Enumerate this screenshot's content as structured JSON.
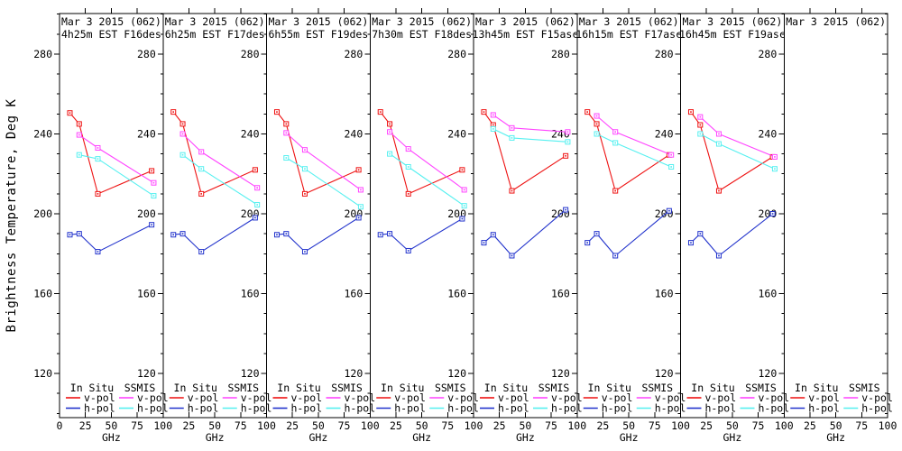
{
  "figure": {
    "background": "#ffffff",
    "frame_color": "#000000"
  },
  "chart_data": {
    "type": "line",
    "title": "",
    "xlabel": "GHz",
    "ylabel": "Brightness Temperature, Deg K",
    "xlim": [
      0,
      100
    ],
    "xticks": [
      0,
      25,
      50,
      75,
      100
    ],
    "xticks_inner": [
      25,
      50,
      75
    ],
    "ylim": [
      97.9,
      300.3
    ],
    "yticks": [
      120,
      160,
      200,
      240,
      280
    ],
    "y_minor_step": 10,
    "grid": false,
    "legend": {
      "position": "bottom-inside-each-panel",
      "groups": [
        {
          "header": "In Situ",
          "entries": [
            {
              "label": "v-pol",
              "series": "insitu_v"
            },
            {
              "label": "h-pol",
              "series": "insitu_h"
            }
          ]
        },
        {
          "header": "SSMIS",
          "entries": [
            {
              "label": "v-pol",
              "series": "ssmis_v"
            },
            {
              "label": "h-pol",
              "series": "ssmis_h"
            }
          ]
        }
      ]
    },
    "colors": {
      "insitu_v": "#ee1111",
      "insitu_h": "#2233cc",
      "ssmis_v": "#ff44ff",
      "ssmis_h": "#55f0f0"
    },
    "panels": [
      {
        "title": "Mar 3 2015 (062)",
        "subtitle": "4h25m EST F16des",
        "series": [
          {
            "key": "insitu_v",
            "x": [
              10,
              19,
              37,
              89
            ],
            "y": [
              250.5,
              245,
              210,
              221.5
            ]
          },
          {
            "key": "insitu_h",
            "x": [
              10,
              19,
              37,
              89
            ],
            "y": [
              189.5,
              190,
              181,
              194.5
            ]
          },
          {
            "key": "ssmis_v",
            "x": [
              19,
              37,
              91
            ],
            "y": [
              239.5,
              233,
              215.5
            ]
          },
          {
            "key": "ssmis_h",
            "x": [
              19,
              37,
              91
            ],
            "y": [
              229.5,
              227.5,
              209
            ]
          }
        ]
      },
      {
        "title": "Mar 3 2015 (062)",
        "subtitle": "6h25m EST F17des",
        "series": [
          {
            "key": "insitu_v",
            "x": [
              10,
              19,
              37,
              89
            ],
            "y": [
              251,
              245,
              210,
              222
            ]
          },
          {
            "key": "insitu_h",
            "x": [
              10,
              19,
              37,
              89
            ],
            "y": [
              189.5,
              190,
              181,
              198
            ]
          },
          {
            "key": "ssmis_v",
            "x": [
              19,
              37,
              91
            ],
            "y": [
              240,
              231,
              213
            ]
          },
          {
            "key": "ssmis_h",
            "x": [
              19,
              37,
              91
            ],
            "y": [
              229.5,
              222.5,
              204.5
            ]
          }
        ]
      },
      {
        "title": "Mar 3 2015 (062)",
        "subtitle": "6h55m EST F19des",
        "series": [
          {
            "key": "insitu_v",
            "x": [
              10,
              19,
              37,
              89
            ],
            "y": [
              251,
              245,
              210,
              222
            ]
          },
          {
            "key": "insitu_h",
            "x": [
              10,
              19,
              37,
              89
            ],
            "y": [
              189.5,
              190,
              181,
              198
            ]
          },
          {
            "key": "ssmis_v",
            "x": [
              19,
              37,
              91
            ],
            "y": [
              240.5,
              232,
              212
            ]
          },
          {
            "key": "ssmis_h",
            "x": [
              19,
              37,
              91
            ],
            "y": [
              228,
              222.5,
              203.5
            ]
          }
        ]
      },
      {
        "title": "Mar 3 2015 (062)",
        "subtitle": "7h30m EST F18des",
        "series": [
          {
            "key": "insitu_v",
            "x": [
              10,
              19,
              37,
              89
            ],
            "y": [
              251,
              245,
              210,
              222
            ]
          },
          {
            "key": "insitu_h",
            "x": [
              10,
              19,
              37,
              89
            ],
            "y": [
              189.5,
              190,
              181.5,
              197.5
            ]
          },
          {
            "key": "ssmis_v",
            "x": [
              19,
              37,
              91
            ],
            "y": [
              241,
              232.5,
              212
            ]
          },
          {
            "key": "ssmis_h",
            "x": [
              19,
              37,
              91
            ],
            "y": [
              230,
              223.5,
              204
            ]
          }
        ]
      },
      {
        "title": "Mar 3 2015 (062)",
        "subtitle": "13h45m EST F15asc",
        "series": [
          {
            "key": "insitu_v",
            "x": [
              10,
              19,
              37,
              89
            ],
            "y": [
              251,
              244.5,
              211.5,
              229
            ]
          },
          {
            "key": "insitu_h",
            "x": [
              10,
              19,
              37,
              89
            ],
            "y": [
              185.5,
              189.5,
              179,
              202
            ]
          },
          {
            "key": "ssmis_v",
            "x": [
              19,
              37,
              91
            ],
            "y": [
              249.5,
              243,
              241
            ]
          },
          {
            "key": "ssmis_h",
            "x": [
              19,
              37,
              91
            ],
            "y": [
              242.5,
              238,
              236
            ]
          }
        ]
      },
      {
        "title": "Mar 3 2015 (062)",
        "subtitle": "16h15m EST F17asc",
        "series": [
          {
            "key": "insitu_v",
            "x": [
              10,
              19,
              37,
              89
            ],
            "y": [
              251,
              245,
              211.5,
              229.5
            ]
          },
          {
            "key": "insitu_h",
            "x": [
              10,
              19,
              37,
              89
            ],
            "y": [
              185.5,
              190,
              179,
              201.5
            ]
          },
          {
            "key": "ssmis_v",
            "x": [
              19,
              37,
              91
            ],
            "y": [
              249,
              241,
              229.5
            ]
          },
          {
            "key": "ssmis_h",
            "x": [
              19,
              37,
              91
            ],
            "y": [
              240,
              235.5,
              223.5
            ]
          }
        ]
      },
      {
        "title": "Mar 3 2015 (062)",
        "subtitle": "16h45m EST F19asc",
        "series": [
          {
            "key": "insitu_v",
            "x": [
              10,
              19,
              37,
              89
            ],
            "y": [
              251,
              244.5,
              211.5,
              228.5
            ]
          },
          {
            "key": "insitu_h",
            "x": [
              10,
              19,
              37,
              89
            ],
            "y": [
              185.5,
              190,
              179,
              200
            ]
          },
          {
            "key": "ssmis_v",
            "x": [
              19,
              37,
              91
            ],
            "y": [
              248.5,
              240,
              228.5
            ]
          },
          {
            "key": "ssmis_h",
            "x": [
              19,
              37,
              91
            ],
            "y": [
              240,
              235,
              222.5
            ]
          }
        ]
      },
      {
        "title": "Mar 3 2015 (062)",
        "subtitle": "",
        "series": []
      }
    ]
  }
}
